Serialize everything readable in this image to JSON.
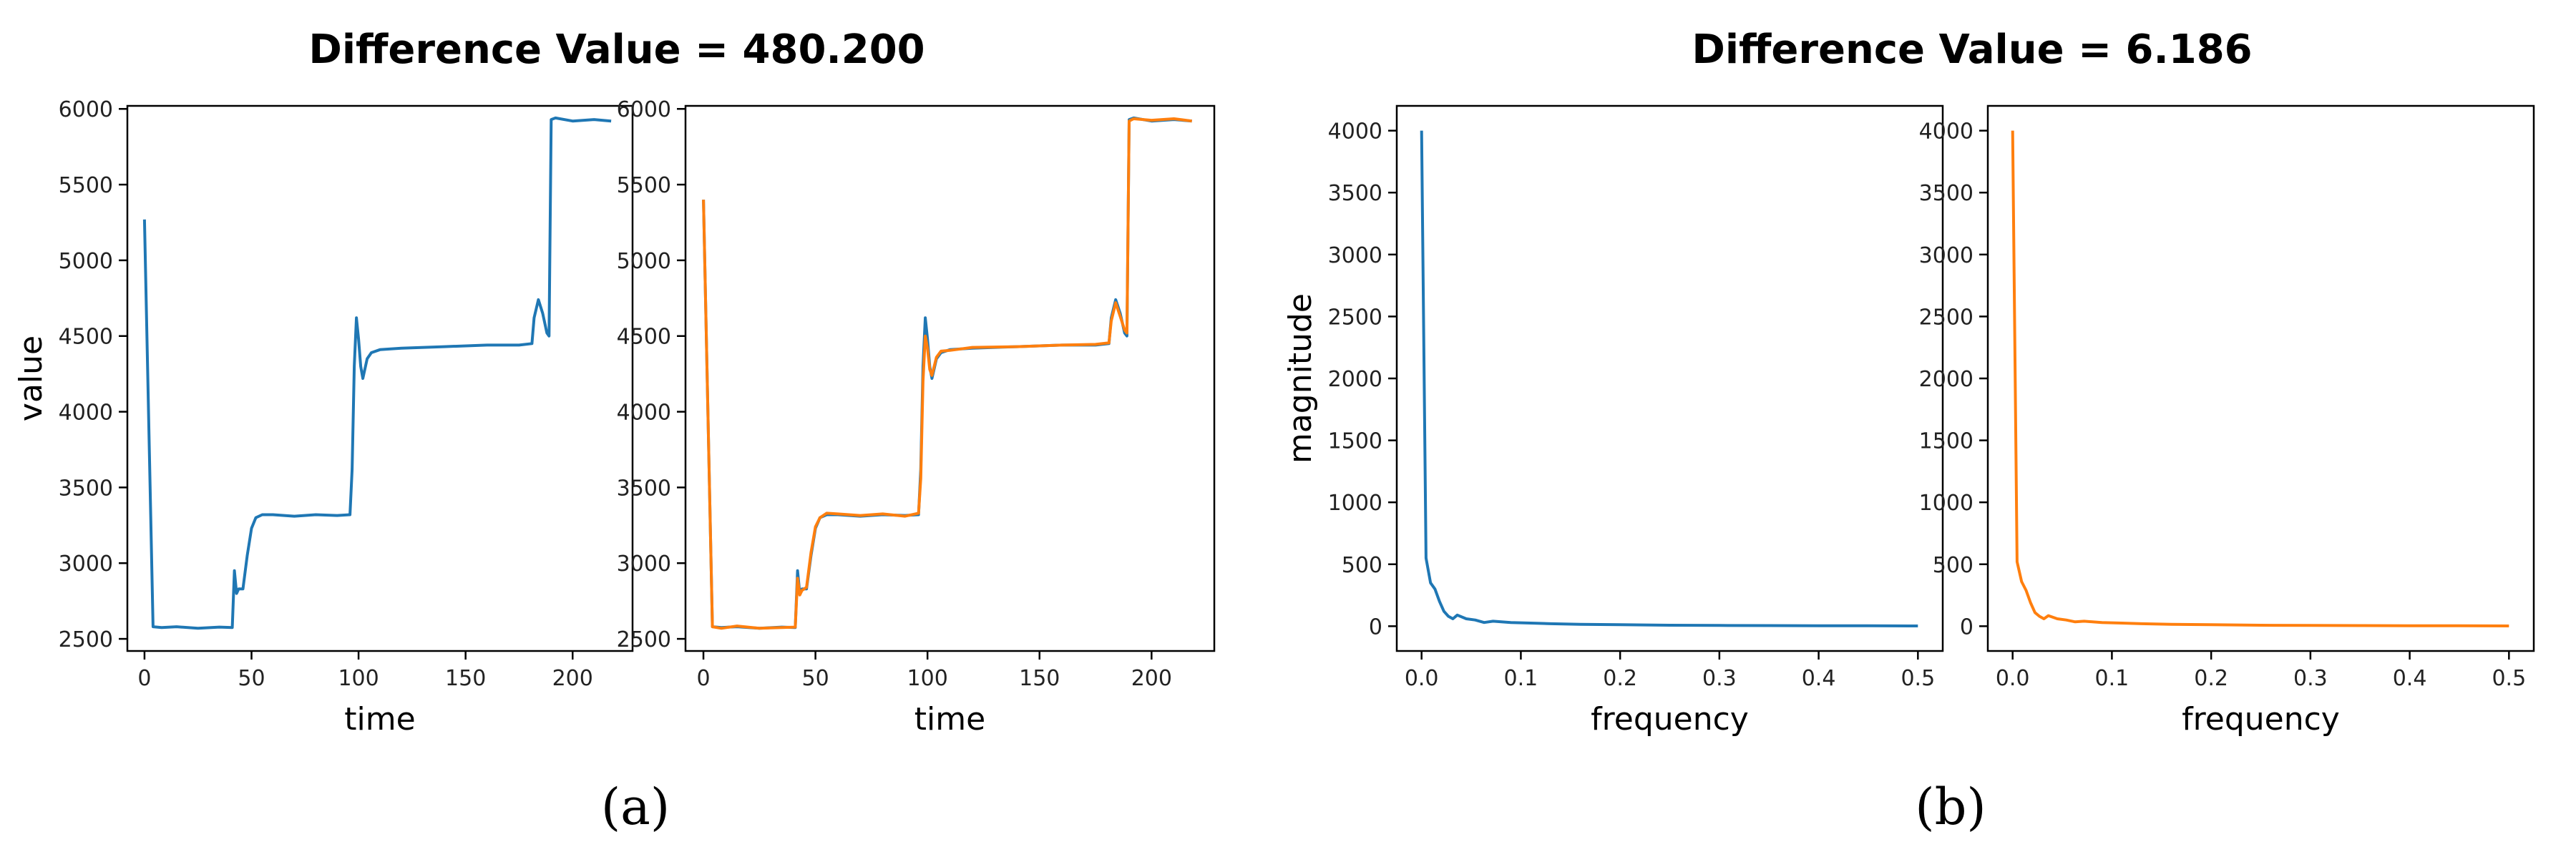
{
  "figure": {
    "group_a": {
      "title": "Difference Value = 480.200",
      "caption": "(a)"
    },
    "group_b": {
      "title": "Difference Value = 6.186",
      "caption": "(b)"
    }
  },
  "colors": {
    "series_blue": "#1f77b4",
    "series_orange": "#ff7f0e",
    "axis": "#000000"
  },
  "chart_data": [
    {
      "type": "line",
      "group": "a",
      "xlabel": "time",
      "ylabel": "value",
      "xlim": [
        -8,
        228
      ],
      "ylim": [
        2420,
        6020
      ],
      "xticks": [
        0,
        50,
        100,
        150,
        200
      ],
      "yticks": [
        2500,
        3000,
        3500,
        4000,
        4500,
        5000,
        5500,
        6000
      ],
      "grid": false,
      "series": [
        {
          "color": "blue",
          "x": [
            0,
            4,
            8,
            15,
            25,
            35,
            41,
            42,
            43,
            44,
            46,
            48,
            50,
            52,
            55,
            60,
            70,
            80,
            90,
            96,
            97,
            98,
            99,
            100,
            101,
            102,
            104,
            106,
            110,
            120,
            140,
            160,
            175,
            181,
            182,
            184,
            186,
            188,
            189,
            190,
            192,
            200,
            210,
            218
          ],
          "y": [
            5270,
            2580,
            2575,
            2580,
            2570,
            2578,
            2575,
            2950,
            2800,
            2830,
            2830,
            3050,
            3230,
            3300,
            3320,
            3320,
            3310,
            3320,
            3315,
            3320,
            3620,
            4300,
            4620,
            4480,
            4300,
            4220,
            4350,
            4390,
            4410,
            4420,
            4430,
            4440,
            4440,
            4450,
            4620,
            4740,
            4650,
            4520,
            4500,
            5930,
            5940,
            5920,
            5930,
            5920
          ]
        }
      ]
    },
    {
      "type": "line",
      "group": "a",
      "xlabel": "time",
      "ylabel": "",
      "xlim": [
        -8,
        228
      ],
      "ylim": [
        2420,
        6020
      ],
      "xticks": [
        0,
        50,
        100,
        150,
        200
      ],
      "yticks": [
        2500,
        3000,
        3500,
        4000,
        4500,
        5000,
        5500,
        6000
      ],
      "grid": false,
      "series": [
        {
          "color": "blue",
          "x": [
            0,
            4,
            8,
            15,
            25,
            35,
            41,
            42,
            43,
            44,
            46,
            48,
            50,
            52,
            55,
            60,
            70,
            80,
            90,
            96,
            97,
            98,
            99,
            100,
            101,
            102,
            104,
            106,
            110,
            120,
            140,
            160,
            175,
            181,
            182,
            184,
            186,
            188,
            189,
            190,
            192,
            200,
            210,
            218
          ],
          "y": [
            5400,
            2580,
            2575,
            2580,
            2570,
            2578,
            2575,
            2950,
            2800,
            2830,
            2830,
            3050,
            3230,
            3300,
            3320,
            3320,
            3310,
            3320,
            3315,
            3320,
            3620,
            4300,
            4620,
            4480,
            4300,
            4220,
            4350,
            4390,
            4410,
            4420,
            4430,
            4440,
            4440,
            4450,
            4620,
            4740,
            4650,
            4520,
            4500,
            5930,
            5940,
            5920,
            5930,
            5920
          ]
        },
        {
          "color": "orange",
          "x": [
            0,
            4,
            8,
            15,
            25,
            35,
            41,
            42,
            43,
            44,
            46,
            48,
            50,
            52,
            55,
            60,
            70,
            80,
            90,
            96,
            97,
            98,
            99,
            100,
            101,
            102,
            104,
            106,
            110,
            120,
            140,
            160,
            175,
            181,
            182,
            184,
            186,
            188,
            189,
            190,
            192,
            200,
            210,
            218
          ],
          "y": [
            5400,
            2580,
            2570,
            2585,
            2570,
            2575,
            2578,
            2900,
            2790,
            2820,
            2840,
            3070,
            3240,
            3300,
            3330,
            3325,
            3315,
            3325,
            3310,
            3330,
            3560,
            4200,
            4500,
            4420,
            4280,
            4240,
            4360,
            4400,
            4405,
            4425,
            4430,
            4440,
            4445,
            4455,
            4600,
            4720,
            4630,
            4540,
            4520,
            5920,
            5935,
            5925,
            5935,
            5920
          ]
        }
      ]
    },
    {
      "type": "line",
      "group": "b",
      "xlabel": "frequency",
      "ylabel": "magnitude",
      "xlim": [
        -0.025,
        0.525
      ],
      "ylim": [
        -200,
        4200
      ],
      "xticks": [
        0.0,
        0.1,
        0.2,
        0.3,
        0.4,
        0.5
      ],
      "yticks": [
        0,
        500,
        1000,
        1500,
        2000,
        2500,
        3000,
        3500,
        4000
      ],
      "grid": false,
      "series": [
        {
          "color": "blue",
          "x": [
            0,
            0.0045,
            0.009,
            0.0135,
            0.018,
            0.0225,
            0.027,
            0.0315,
            0.036,
            0.045,
            0.054,
            0.063,
            0.072,
            0.09,
            0.11,
            0.13,
            0.16,
            0.2,
            0.25,
            0.3,
            0.35,
            0.4,
            0.45,
            0.5
          ],
          "y": [
            4000,
            550,
            350,
            300,
            200,
            120,
            80,
            60,
            90,
            60,
            50,
            30,
            40,
            30,
            25,
            20,
            15,
            12,
            8,
            6,
            5,
            4,
            3,
            2
          ]
        }
      ]
    },
    {
      "type": "line",
      "group": "b",
      "xlabel": "frequency",
      "ylabel": "",
      "xlim": [
        -0.025,
        0.525
      ],
      "ylim": [
        -200,
        4200
      ],
      "xticks": [
        0.0,
        0.1,
        0.2,
        0.3,
        0.4,
        0.5
      ],
      "yticks": [
        0,
        500,
        1000,
        1500,
        2000,
        2500,
        3000,
        3500,
        4000
      ],
      "grid": false,
      "series": [
        {
          "color": "orange",
          "x": [
            0,
            0.0045,
            0.009,
            0.0135,
            0.018,
            0.0225,
            0.027,
            0.0315,
            0.036,
            0.045,
            0.054,
            0.063,
            0.072,
            0.09,
            0.11,
            0.13,
            0.16,
            0.2,
            0.25,
            0.3,
            0.35,
            0.4,
            0.45,
            0.5
          ],
          "y": [
            4000,
            520,
            360,
            290,
            190,
            110,
            80,
            60,
            85,
            60,
            50,
            35,
            40,
            30,
            25,
            20,
            15,
            12,
            8,
            6,
            5,
            4,
            3,
            2
          ]
        }
      ]
    }
  ]
}
